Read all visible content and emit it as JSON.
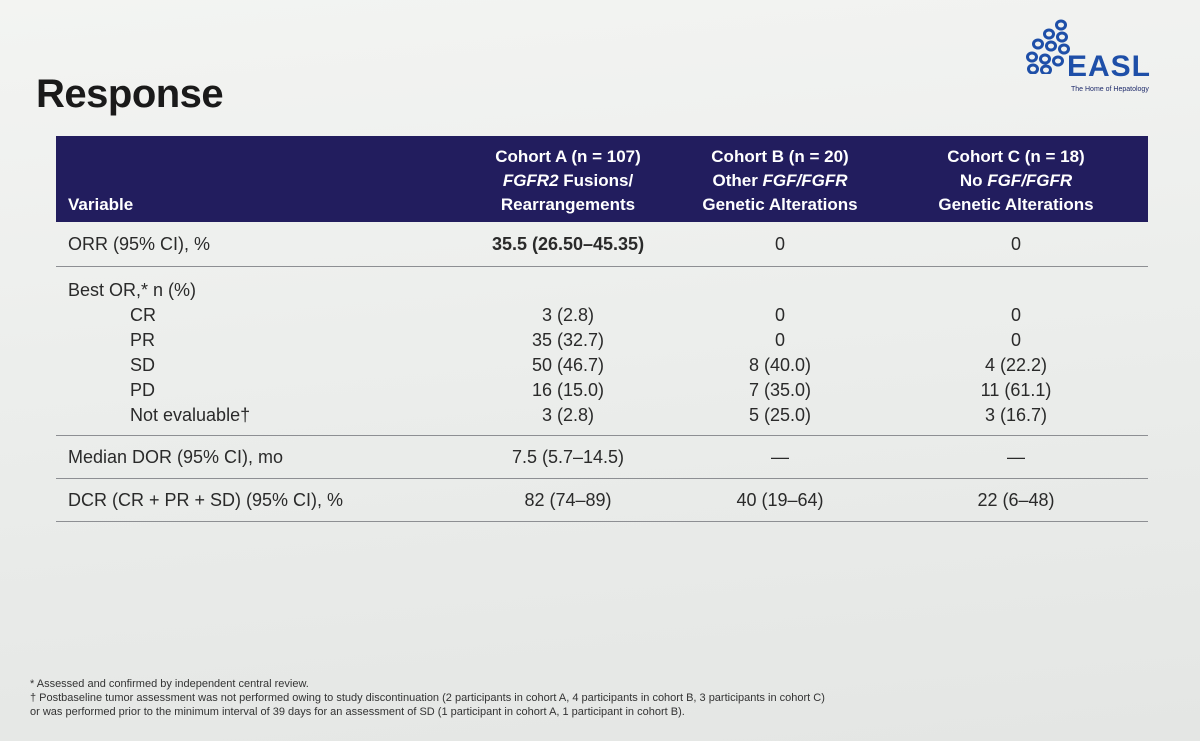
{
  "slide": {
    "title": "Response"
  },
  "logo": {
    "text": "EASL",
    "tagline": "The Home of Hepatology",
    "brand_color": "#1e4fa8"
  },
  "table": {
    "header_bg": "#221d5e",
    "headers": {
      "variable": "Variable",
      "cohort_a": {
        "line1": "Cohort A (n = 107)",
        "line2_italic": "FGFR2",
        "line2_rest": " Fusions/",
        "line3": "Rearrangements"
      },
      "cohort_b": {
        "line1": "Cohort B (n = 20)",
        "line2_pre": "Other ",
        "line2_italic": "FGF/FGFR",
        "line3": "Genetic Alterations"
      },
      "cohort_c": {
        "line1": "Cohort C (n = 18)",
        "line2_pre": "No ",
        "line2_italic": "FGF/FGFR",
        "line3": "Genetic Alterations"
      }
    },
    "orr": {
      "label": "ORR (95% CI), %",
      "a": "35.5 (26.50–45.35)",
      "b": "0",
      "c": "0"
    },
    "best_or": {
      "label": "Best OR,* n (%)",
      "rows": [
        {
          "label": "CR",
          "a": "3 (2.8)",
          "b": "0",
          "c": "0"
        },
        {
          "label": "PR",
          "a": "35 (32.7)",
          "b": "0",
          "c": "0"
        },
        {
          "label": "SD",
          "a": "50 (46.7)",
          "b": "8 (40.0)",
          "c": "4 (22.2)"
        },
        {
          "label": "PD",
          "a": "16 (15.0)",
          "b": "7 (35.0)",
          "c": "11 (61.1)"
        },
        {
          "label": "Not evaluable†",
          "a": "3 (2.8)",
          "b": "5 (25.0)",
          "c": "3 (16.7)"
        }
      ]
    },
    "dor": {
      "label": "Median DOR (95% CI), mo",
      "a": "7.5 (5.7–14.5)",
      "b": "—",
      "c": "—"
    },
    "dcr": {
      "label": "DCR (CR + PR + SD) (95% CI), %",
      "a": "82 (74–89)",
      "b": "40 (19–64)",
      "c": "22 (6–48)"
    }
  },
  "footnotes": [
    "* Assessed and confirmed by independent central review.",
    "† Postbaseline tumor assessment was not performed owing to study discontinuation (2 participants in cohort A, 4 participants in cohort B, 3 participants in cohort C)",
    "or was performed prior to the minimum interval of 39 days for an assessment of SD (1 participant in cohort A, 1 participant in cohort B)."
  ]
}
